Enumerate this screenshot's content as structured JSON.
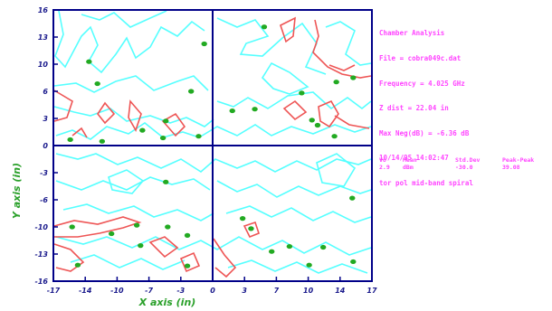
{
  "chart_data": {
    "type": "contour",
    "xlabel": "X axis (in)",
    "ylabel": "Y axis (in)",
    "x_ticks": [
      "-17",
      "-14",
      "-10",
      "-7",
      "-3",
      "0",
      "3",
      "7",
      "10",
      "14",
      "17"
    ],
    "y_ticks": [
      "16",
      "13",
      "10",
      "6",
      "3",
      "0",
      "-3",
      "-6",
      "-10",
      "-13",
      "-16"
    ],
    "xlim": [
      -17,
      17
    ],
    "ylim": [
      -16,
      16
    ],
    "grid": false,
    "crosshair": {
      "x": 0,
      "y": 0
    },
    "colors": {
      "cyan_contour": "#55ffff",
      "red_contour": "#ee5555",
      "points": "#22aa22",
      "frame": "#000088",
      "info_text": "#ff44ff"
    },
    "legend_lines": [
      "Chamber Analysis",
      "File = cobra049c.dat",
      "Frequency = 4.025 GHz",
      "Z dist = 22.04 in",
      "Max Neg(dB) = -6.36 dB",
      "10/14/95 14:02:47",
      "tor pol mid-band spiral"
    ],
    "table": {
      "headers": [
        "Vo",
        "Mean",
        "Std.Dev",
        "Peak-Peak"
      ],
      "row": [
        "2.9",
        "dBm",
        "-30.0",
        "39.08"
      ]
    },
    "points": [
      {
        "x": -15.2,
        "y": 0.7
      },
      {
        "x": -11.8,
        "y": 0.5
      },
      {
        "x": -7.5,
        "y": 1.8
      },
      {
        "x": -5.3,
        "y": 0.9
      },
      {
        "x": -12.3,
        "y": 7.3
      },
      {
        "x": -13.2,
        "y": 9.9
      },
      {
        "x": -5.0,
        "y": 2.9
      },
      {
        "x": -2.3,
        "y": 6.4
      },
      {
        "x": -1.5,
        "y": 1.1
      },
      {
        "x": 2.1,
        "y": 4.1
      },
      {
        "x": 5.5,
        "y": 14.0
      },
      {
        "x": 9.5,
        "y": 6.2
      },
      {
        "x": 10.6,
        "y": 3.0
      },
      {
        "x": 11.2,
        "y": 2.4
      },
      {
        "x": 13.2,
        "y": 7.5
      },
      {
        "x": 15.0,
        "y": 8.0
      },
      {
        "x": 13.0,
        "y": 1.1
      },
      {
        "x": -0.9,
        "y": 12.0
      },
      {
        "x": 4.5,
        "y": 4.3
      },
      {
        "x": -5.0,
        "y": -4.3
      },
      {
        "x": -4.8,
        "y": -9.6
      },
      {
        "x": -15.0,
        "y": -9.6
      },
      {
        "x": -8.1,
        "y": -9.4
      },
      {
        "x": -10.8,
        "y": -10.4
      },
      {
        "x": -2.7,
        "y": -10.6
      },
      {
        "x": 3.2,
        "y": -8.6
      },
      {
        "x": 4.1,
        "y": -9.8
      },
      {
        "x": 8.2,
        "y": -11.9
      },
      {
        "x": 11.8,
        "y": -12.0
      },
      {
        "x": 10.3,
        "y": -14.1
      },
      {
        "x": 15.0,
        "y": -13.7
      },
      {
        "x": -7.7,
        "y": -11.8
      },
      {
        "x": -2.7,
        "y": -14.2
      },
      {
        "x": -14.4,
        "y": -14.1
      },
      {
        "x": 14.9,
        "y": -6.2
      },
      {
        "x": 6.3,
        "y": -12.5
      }
    ]
  }
}
